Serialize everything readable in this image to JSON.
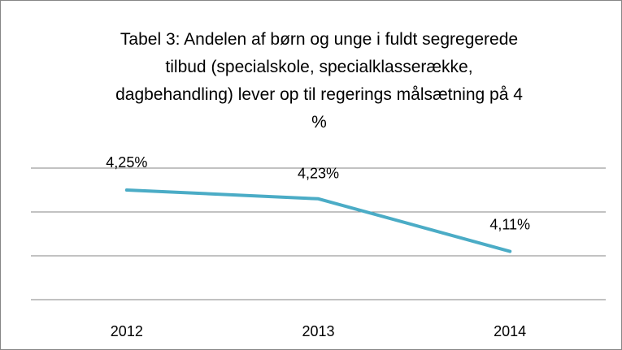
{
  "chart_data": {
    "type": "line",
    "title": "Tabel 3: Andelen af børn og unge i fuldt segregerede tilbud (specialskole, specialklasserække, dagbehandling) lever op til regerings målsætning på 4 %",
    "categories": [
      "2012",
      "2013",
      "2014"
    ],
    "series": [
      {
        "color": "#4bacc6",
        "values": [
          4.25,
          4.23,
          4.11
        ],
        "value_labels": [
          "4,25%",
          "4,23%",
          "4,11%"
        ]
      }
    ],
    "ylim": [
      4.0,
      4.3
    ],
    "yticks": [
      4.0,
      4.1,
      4.2,
      4.3
    ],
    "grid": true
  }
}
